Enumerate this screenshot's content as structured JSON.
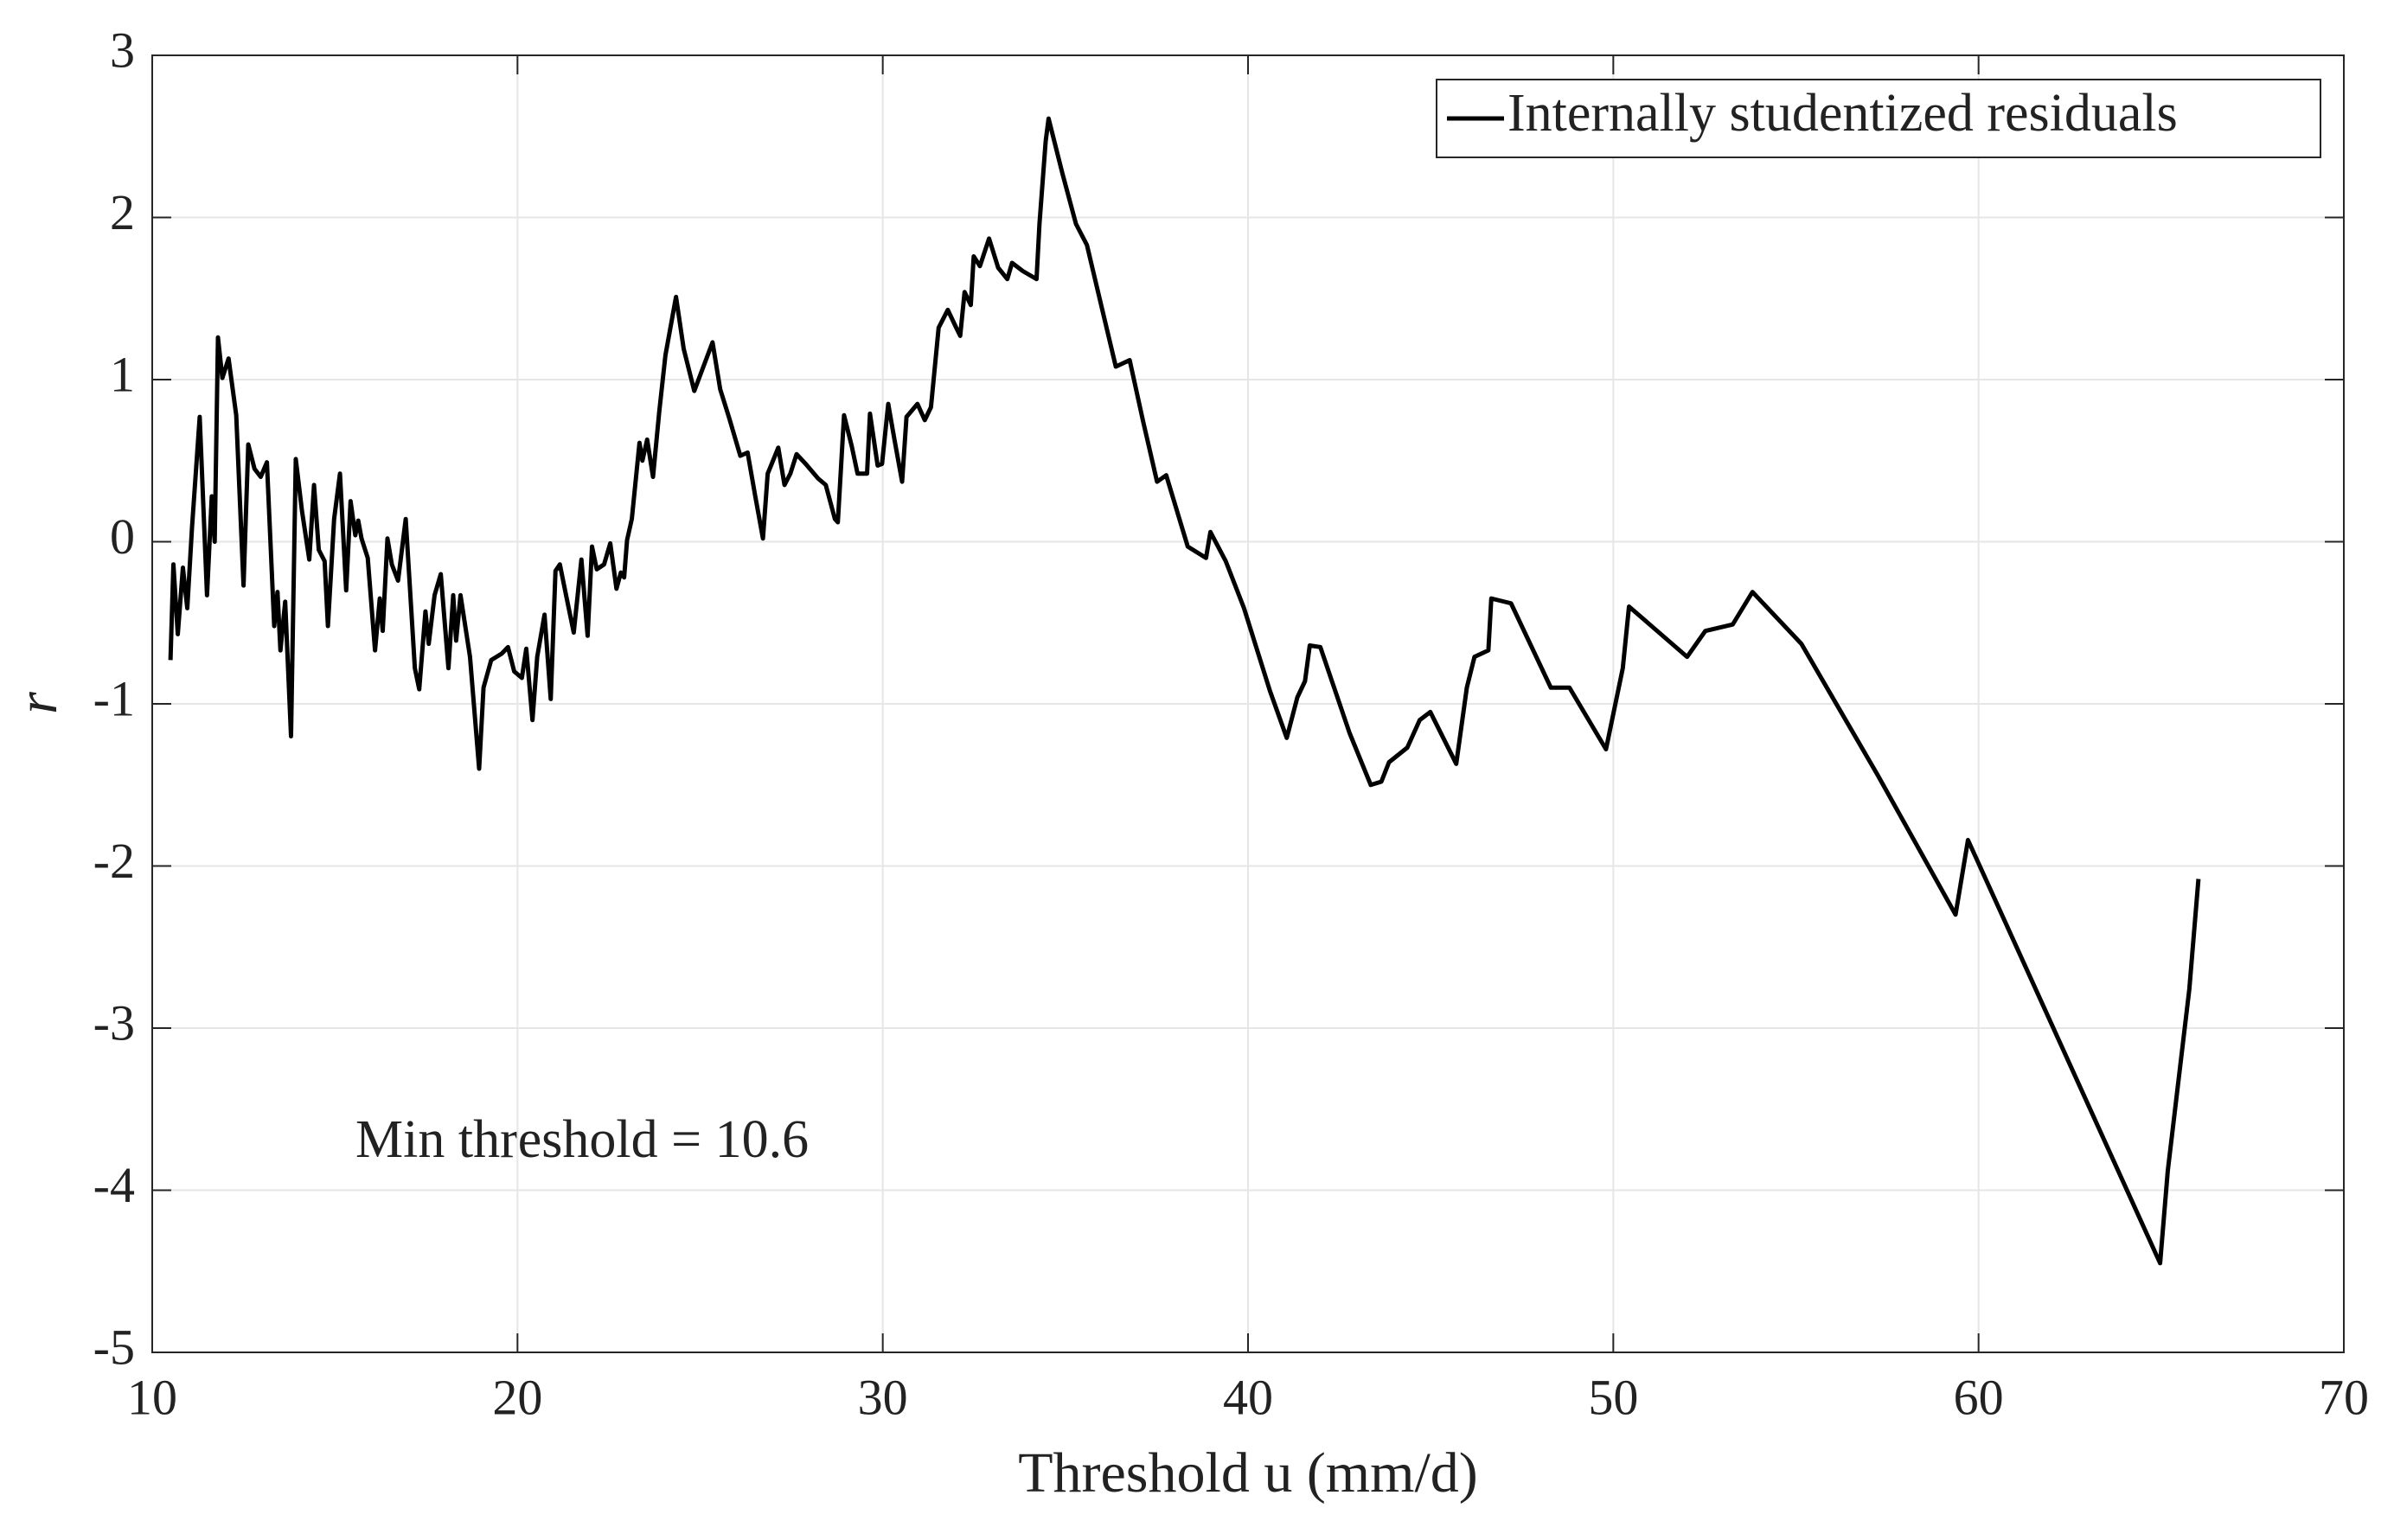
{
  "chart_data": {
    "type": "line",
    "xlabel": "Threshold u (mm/d)",
    "ylabel": "r",
    "annotation": "Min threshold = 10.6",
    "legend": "top-right",
    "grid": true,
    "xlim": [
      10,
      70
    ],
    "ylim": [
      -5,
      3
    ],
    "xticks": [
      10,
      20,
      30,
      40,
      50,
      60,
      70
    ],
    "yticks": [
      -5,
      -4,
      -3,
      -2,
      -1,
      0,
      1,
      2,
      3
    ],
    "x": [
      10.5,
      10.58,
      10.7,
      10.84,
      10.96,
      11.09,
      11.3,
      11.5,
      11.63,
      11.71,
      11.8,
      11.92,
      12.09,
      12.3,
      12.5,
      12.63,
      12.8,
      12.97,
      13.14,
      13.34,
      13.43,
      13.51,
      13.64,
      13.8,
      13.93,
      14.1,
      14.3,
      14.43,
      14.56,
      14.72,
      14.81,
      14.98,
      15.14,
      15.31,
      15.43,
      15.56,
      15.64,
      15.73,
      15.9,
      16.1,
      16.23,
      16.31,
      16.44,
      16.56,
      16.73,
      16.94,
      17.19,
      17.31,
      17.48,
      17.57,
      17.73,
      17.9,
      18.11,
      18.24,
      18.32,
      18.44,
      18.7,
      18.95,
      19.07,
      19.28,
      19.57,
      19.74,
      19.91,
      20.12,
      20.24,
      20.41,
      20.54,
      20.74,
      20.91,
      21.04,
      21.16,
      21.33,
      21.54,
      21.75,
      21.92,
      22.04,
      22.17,
      22.37,
      22.54,
      22.71,
      22.83,
      22.92,
      23.0,
      23.13,
      23.34,
      23.42,
      23.55,
      23.71,
      23.88,
      24.05,
      24.34,
      24.55,
      24.84,
      25.09,
      25.34,
      25.55,
      25.8,
      26.1,
      26.3,
      26.51,
      26.72,
      26.85,
      27.14,
      27.31,
      27.47,
      27.64,
      27.89,
      28.23,
      28.44,
      28.69,
      28.77,
      28.94,
      29.15,
      29.31,
      29.57,
      29.65,
      29.86,
      29.98,
      30.15,
      30.32,
      30.53,
      30.65,
      30.95,
      31.15,
      31.32,
      31.53,
      31.78,
      31.99,
      32.12,
      32.24,
      32.41,
      32.49,
      32.66,
      32.91,
      33.16,
      33.41,
      33.54,
      33.83,
      34.21,
      34.29,
      34.46,
      34.54,
      34.92,
      35.29,
      35.59,
      36.0,
      36.38,
      36.76,
      37.13,
      37.51,
      37.76,
      38.35,
      38.85,
      38.97,
      39.39,
      39.89,
      40.6,
      41.06,
      41.35,
      41.56,
      41.69,
      41.98,
      42.78,
      43.36,
      43.65,
      43.86,
      44.36,
      44.7,
      44.99,
      45.7,
      45.99,
      46.2,
      46.58,
      46.66,
      47.2,
      48.29,
      48.8,
      49.8,
      50.26,
      50.43,
      52.02,
      52.52,
      53.27,
      53.81,
      55.15,
      57.24,
      59.37,
      59.71,
      64.97,
      65.18,
      65.77,
      66.02
    ],
    "series": [
      {
        "name": "Internally studentized residuals",
        "color": "#000000",
        "values": [
          -0.73,
          -0.14,
          -0.57,
          -0.16,
          -0.41,
          0.09,
          0.77,
          -0.33,
          0.28,
          0.0,
          1.26,
          1.01,
          1.13,
          0.78,
          -0.27,
          0.6,
          0.45,
          0.4,
          0.49,
          -0.52,
          -0.31,
          -0.67,
          -0.37,
          -1.2,
          0.51,
          0.19,
          -0.11,
          0.35,
          -0.05,
          -0.12,
          -0.52,
          0.14,
          0.42,
          -0.3,
          0.25,
          0.04,
          0.13,
          0.02,
          -0.1,
          -0.67,
          -0.35,
          -0.55,
          0.02,
          -0.14,
          -0.24,
          0.14,
          -0.78,
          -0.91,
          -0.43,
          -0.63,
          -0.33,
          -0.2,
          -0.78,
          -0.33,
          -0.61,
          -0.33,
          -0.71,
          -1.4,
          -0.9,
          -0.73,
          -0.69,
          -0.65,
          -0.8,
          -0.84,
          -0.66,
          -1.1,
          -0.71,
          -0.45,
          -0.97,
          -0.18,
          -0.14,
          -0.33,
          -0.56,
          -0.11,
          -0.58,
          -0.03,
          -0.17,
          -0.14,
          -0.01,
          -0.29,
          -0.19,
          -0.22,
          0.01,
          0.14,
          0.61,
          0.5,
          0.63,
          0.4,
          0.8,
          1.15,
          1.51,
          1.19,
          0.93,
          1.08,
          1.23,
          0.94,
          0.76,
          0.53,
          0.55,
          0.28,
          0.02,
          0.42,
          0.58,
          0.35,
          0.42,
          0.54,
          0.48,
          0.39,
          0.35,
          0.14,
          0.12,
          0.78,
          0.59,
          0.42,
          0.42,
          0.79,
          0.47,
          0.48,
          0.85,
          0.63,
          0.37,
          0.77,
          0.85,
          0.75,
          0.83,
          1.32,
          1.43,
          1.33,
          1.27,
          1.54,
          1.46,
          1.76,
          1.7,
          1.87,
          1.69,
          1.62,
          1.72,
          1.67,
          1.62,
          1.96,
          2.47,
          2.61,
          2.27,
          1.96,
          1.83,
          1.44,
          1.08,
          1.12,
          0.74,
          0.37,
          0.41,
          -0.03,
          -0.1,
          0.06,
          -0.12,
          -0.41,
          -0.92,
          -1.21,
          -0.96,
          -0.86,
          -0.64,
          -0.65,
          -1.18,
          -1.5,
          -1.48,
          -1.36,
          -1.27,
          -1.1,
          -1.05,
          -1.37,
          -0.9,
          -0.71,
          -0.67,
          -0.35,
          -0.38,
          -0.9,
          -0.9,
          -1.28,
          -0.78,
          -0.4,
          -0.71,
          -0.55,
          -0.51,
          -0.31,
          -0.63,
          -1.44,
          -2.3,
          -1.84,
          -4.45,
          -3.88,
          -2.76,
          -2.08
        ]
      }
    ]
  }
}
